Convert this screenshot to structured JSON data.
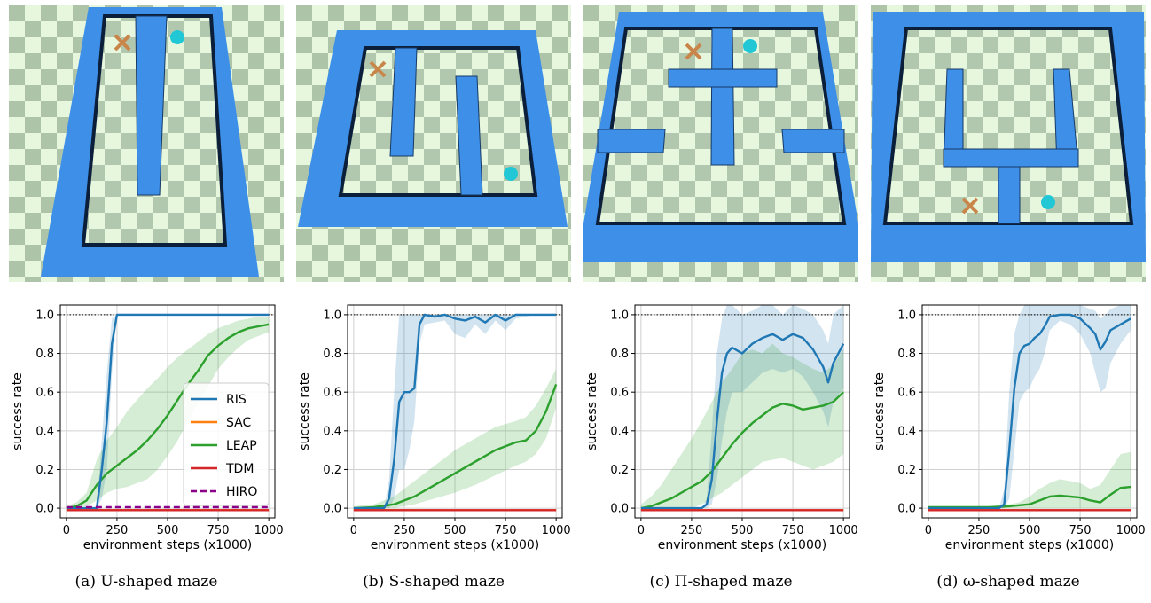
{
  "figure": {
    "panels": [
      {
        "caption": "(a) U-shaped maze",
        "maze": "U-shaped",
        "legend": true
      },
      {
        "caption": "(b) S-shaped maze",
        "maze": "S-shaped",
        "legend": false
      },
      {
        "caption": "(c) Π-shaped maze",
        "maze": "Pi-shaped",
        "legend": false
      },
      {
        "caption": "(d) ω-shaped maze",
        "maze": "omega-shaped",
        "legend": false
      }
    ],
    "colors": {
      "RIS": "#1f77b4",
      "SAC": "#ff7f0e",
      "LEAP": "#2ca02c",
      "TDM": "#d62728",
      "HIRO": "#8b008b",
      "wall": "#3d8fe8",
      "checker_light": "#e6f7de",
      "checker_dark": "#7e9a7e",
      "ball": "#22c7d6",
      "agent": "#c9864b"
    }
  },
  "chart_data": [
    {
      "type": "line",
      "xlabel": "environment steps (x1000)",
      "ylabel": "success rate",
      "xlim": [
        -30,
        1030
      ],
      "ylim": [
        -0.05,
        1.05
      ],
      "xticks": [
        "0",
        "250",
        "500",
        "750",
        "1000"
      ],
      "yticks": [
        "0.0",
        "0.2",
        "0.4",
        "0.6",
        "0.8",
        "1.0"
      ],
      "grid": true,
      "reference_line": 1.0,
      "legend_position": "center-right",
      "series": [
        {
          "name": "RIS",
          "style": "solid",
          "x": [
            0,
            150,
            175,
            200,
            225,
            250,
            300,
            400,
            500,
            600,
            700,
            800,
            900,
            1000
          ],
          "y": [
            0,
            0,
            0.2,
            0.45,
            0.85,
            1.0,
            1.0,
            1.0,
            1.0,
            1.0,
            1.0,
            1.0,
            1.0,
            1.0
          ],
          "upper": [
            0,
            0,
            0.35,
            0.7,
            0.98,
            1.0,
            1.0,
            1.0,
            1.0,
            1.0,
            1.0,
            1.0,
            1.0,
            1.0
          ],
          "lower": [
            0,
            0,
            0.05,
            0.2,
            0.7,
            1.0,
            1.0,
            1.0,
            1.0,
            1.0,
            1.0,
            1.0,
            1.0,
            1.0
          ]
        },
        {
          "name": "SAC",
          "style": "solid",
          "x": [
            0,
            1000
          ],
          "y": [
            -0.01,
            -0.01
          ]
        },
        {
          "name": "LEAP",
          "style": "solid",
          "x": [
            0,
            50,
            100,
            150,
            200,
            250,
            300,
            350,
            400,
            450,
            500,
            550,
            600,
            650,
            700,
            750,
            800,
            850,
            900,
            950,
            1000
          ],
          "y": [
            0,
            0.01,
            0.04,
            0.12,
            0.18,
            0.22,
            0.26,
            0.3,
            0.35,
            0.41,
            0.48,
            0.56,
            0.64,
            0.71,
            0.79,
            0.84,
            0.88,
            0.91,
            0.93,
            0.94,
            0.95
          ],
          "upper": [
            0.01,
            0.03,
            0.08,
            0.25,
            0.35,
            0.42,
            0.5,
            0.56,
            0.62,
            0.67,
            0.73,
            0.78,
            0.82,
            0.86,
            0.9,
            0.93,
            0.95,
            0.97,
            0.98,
            0.99,
            0.99
          ],
          "lower": [
            0,
            0,
            0.01,
            0.04,
            0.08,
            0.1,
            0.11,
            0.13,
            0.15,
            0.2,
            0.27,
            0.35,
            0.45,
            0.54,
            0.63,
            0.72,
            0.78,
            0.83,
            0.87,
            0.89,
            0.91
          ]
        },
        {
          "name": "TDM",
          "style": "solid",
          "x": [
            0,
            1000
          ],
          "y": [
            -0.01,
            -0.01
          ]
        },
        {
          "name": "HIRO",
          "style": "dashed",
          "x": [
            0,
            1000
          ],
          "y": [
            0.005,
            0.005
          ]
        }
      ]
    },
    {
      "type": "line",
      "xlabel": "environment steps (x1000)",
      "ylabel": "success rate",
      "xlim": [
        -30,
        1030
      ],
      "ylim": [
        -0.05,
        1.05
      ],
      "xticks": [
        "0",
        "250",
        "500",
        "750",
        "1000"
      ],
      "yticks": [
        "0.0",
        "0.2",
        "0.4",
        "0.6",
        "0.8",
        "1.0"
      ],
      "grid": true,
      "reference_line": 1.0,
      "series": [
        {
          "name": "RIS",
          "style": "solid",
          "x": [
            0,
            150,
            175,
            200,
            225,
            250,
            275,
            300,
            325,
            350,
            400,
            450,
            500,
            550,
            600,
            650,
            700,
            750,
            800,
            850,
            900,
            950,
            1000
          ],
          "y": [
            0,
            0,
            0.05,
            0.25,
            0.55,
            0.6,
            0.6,
            0.62,
            0.95,
            1.0,
            0.99,
            1.0,
            0.98,
            0.97,
            0.99,
            0.96,
            1.0,
            0.97,
            1.0,
            1.0,
            1.0,
            1.0,
            1.0
          ],
          "upper": [
            0,
            0,
            0.15,
            0.6,
            1.0,
            1.0,
            1.0,
            1.0,
            1.0,
            1.0,
            1.0,
            1.0,
            1.0,
            1.0,
            1.0,
            1.0,
            1.0,
            1.0,
            1.0,
            1.0,
            1.0,
            1.0,
            1.0
          ],
          "lower": [
            0,
            0,
            0,
            0.05,
            0.2,
            0.2,
            0.3,
            0.45,
            0.85,
            0.95,
            0.96,
            0.97,
            0.9,
            0.88,
            0.95,
            0.9,
            0.97,
            0.92,
            0.98,
            0.99,
            1.0,
            1.0,
            1.0
          ]
        },
        {
          "name": "SAC",
          "style": "solid",
          "x": [
            0,
            1000
          ],
          "y": [
            -0.01,
            -0.01
          ]
        },
        {
          "name": "LEAP",
          "style": "solid",
          "x": [
            0,
            100,
            200,
            300,
            400,
            500,
            600,
            700,
            800,
            850,
            900,
            950,
            1000
          ],
          "y": [
            0,
            0.005,
            0.02,
            0.06,
            0.12,
            0.18,
            0.24,
            0.3,
            0.34,
            0.35,
            0.4,
            0.5,
            0.64
          ],
          "upper": [
            0.01,
            0.02,
            0.06,
            0.14,
            0.22,
            0.3,
            0.36,
            0.42,
            0.45,
            0.47,
            0.53,
            0.62,
            0.72
          ],
          "lower": [
            0,
            0,
            0,
            0.02,
            0.05,
            0.08,
            0.12,
            0.17,
            0.22,
            0.24,
            0.28,
            0.36,
            0.52
          ]
        },
        {
          "name": "TDM",
          "style": "solid",
          "x": [
            0,
            1000
          ],
          "y": [
            -0.01,
            -0.01
          ]
        }
      ]
    },
    {
      "type": "line",
      "xlabel": "environment steps (x1000)",
      "ylabel": "success rate",
      "xlim": [
        -30,
        1030
      ],
      "ylim": [
        -0.05,
        1.05
      ],
      "xticks": [
        "0",
        "250",
        "500",
        "750",
        "1000"
      ],
      "yticks": [
        "0.0",
        "0.2",
        "0.4",
        "0.6",
        "0.8",
        "1.0"
      ],
      "grid": true,
      "reference_line": 1.0,
      "series": [
        {
          "name": "RIS",
          "style": "solid",
          "x": [
            0,
            300,
            325,
            350,
            375,
            400,
            425,
            450,
            500,
            550,
            600,
            650,
            700,
            750,
            800,
            850,
            900,
            925,
            950,
            1000
          ],
          "y": [
            0,
            0,
            0.02,
            0.15,
            0.45,
            0.7,
            0.8,
            0.83,
            0.8,
            0.85,
            0.88,
            0.9,
            0.87,
            0.9,
            0.88,
            0.82,
            0.73,
            0.65,
            0.75,
            0.85
          ],
          "upper": [
            0,
            0,
            0.05,
            0.4,
            0.8,
            0.98,
            1.05,
            1.05,
            1.0,
            1.02,
            1.05,
            1.05,
            1.0,
            1.05,
            1.03,
            1.0,
            0.92,
            0.85,
            1.0,
            1.05
          ],
          "lower": [
            0,
            0,
            0,
            0.02,
            0.15,
            0.35,
            0.5,
            0.6,
            0.6,
            0.65,
            0.7,
            0.72,
            0.7,
            0.72,
            0.68,
            0.6,
            0.5,
            0.42,
            0.55,
            0.62
          ]
        },
        {
          "name": "SAC",
          "style": "solid",
          "x": [
            0,
            1000
          ],
          "y": [
            -0.01,
            -0.01
          ]
        },
        {
          "name": "LEAP",
          "style": "solid",
          "x": [
            0,
            50,
            100,
            150,
            200,
            250,
            300,
            350,
            400,
            450,
            500,
            550,
            600,
            650,
            700,
            750,
            800,
            850,
            900,
            950,
            1000
          ],
          "y": [
            0,
            0.01,
            0.03,
            0.05,
            0.08,
            0.11,
            0.14,
            0.19,
            0.26,
            0.33,
            0.39,
            0.44,
            0.48,
            0.52,
            0.54,
            0.53,
            0.51,
            0.52,
            0.53,
            0.55,
            0.6
          ],
          "upper": [
            0.02,
            0.06,
            0.12,
            0.2,
            0.28,
            0.36,
            0.45,
            0.55,
            0.65,
            0.72,
            0.8,
            0.82,
            0.8,
            0.85,
            0.8,
            0.78,
            0.75,
            0.72,
            0.7,
            0.74,
            0.82
          ],
          "lower": [
            0,
            0,
            0,
            0,
            0,
            0,
            0.02,
            0.05,
            0.08,
            0.12,
            0.16,
            0.2,
            0.24,
            0.25,
            0.26,
            0.24,
            0.22,
            0.2,
            0.22,
            0.24,
            0.28
          ]
        },
        {
          "name": "TDM",
          "style": "solid",
          "x": [
            0,
            1000
          ],
          "y": [
            -0.01,
            -0.01
          ]
        }
      ]
    },
    {
      "type": "line",
      "xlabel": "environment steps (x1000)",
      "ylabel": "success rate",
      "xlim": [
        -30,
        1030
      ],
      "ylim": [
        -0.05,
        1.05
      ],
      "xticks": [
        "0",
        "250",
        "500",
        "750",
        "1000"
      ],
      "yticks": [
        "0.0",
        "0.2",
        "0.4",
        "0.6",
        "0.8",
        "1.0"
      ],
      "grid": true,
      "reference_line": 1.0,
      "series": [
        {
          "name": "RIS",
          "style": "solid",
          "x": [
            0,
            350,
            375,
            400,
            425,
            450,
            475,
            500,
            525,
            550,
            575,
            600,
            650,
            700,
            750,
            800,
            825,
            850,
            875,
            900,
            950,
            1000
          ],
          "y": [
            0,
            0,
            0.02,
            0.3,
            0.62,
            0.8,
            0.84,
            0.85,
            0.88,
            0.9,
            0.94,
            0.99,
            1.0,
            1.0,
            0.98,
            0.93,
            0.9,
            0.82,
            0.86,
            0.92,
            0.95,
            0.98
          ],
          "upper": [
            0,
            0,
            0.1,
            0.6,
            0.9,
            1.0,
            1.05,
            1.05,
            1.05,
            1.05,
            1.05,
            1.05,
            1.05,
            1.05,
            1.05,
            1.03,
            1.02,
            0.98,
            1.0,
            1.03,
            1.05,
            1.05
          ],
          "lower": [
            0,
            0,
            0,
            0.05,
            0.3,
            0.55,
            0.6,
            0.62,
            0.68,
            0.72,
            0.8,
            0.92,
            0.97,
            0.95,
            0.9,
            0.8,
            0.7,
            0.6,
            0.62,
            0.75,
            0.85,
            0.92
          ]
        },
        {
          "name": "SAC",
          "style": "solid",
          "x": [
            0,
            1000
          ],
          "y": [
            -0.01,
            -0.01
          ]
        },
        {
          "name": "LEAP",
          "style": "solid",
          "x": [
            0,
            100,
            200,
            300,
            400,
            450,
            500,
            550,
            600,
            650,
            700,
            750,
            800,
            850,
            900,
            950,
            1000
          ],
          "y": [
            0.005,
            0.005,
            0.005,
            0.005,
            0.01,
            0.015,
            0.02,
            0.04,
            0.06,
            0.065,
            0.06,
            0.055,
            0.04,
            0.03,
            0.07,
            0.105,
            0.11
          ],
          "upper": [
            0.01,
            0.01,
            0.01,
            0.01,
            0.02,
            0.03,
            0.06,
            0.1,
            0.13,
            0.15,
            0.14,
            0.13,
            0.1,
            0.12,
            0.2,
            0.28,
            0.29
          ],
          "lower": [
            0,
            0,
            0,
            0,
            0,
            0,
            0,
            0,
            0,
            0,
            0,
            0,
            0,
            0,
            0,
            0,
            0
          ]
        },
        {
          "name": "TDM",
          "style": "solid",
          "x": [
            0,
            1000
          ],
          "y": [
            -0.01,
            -0.01
          ]
        }
      ]
    }
  ]
}
